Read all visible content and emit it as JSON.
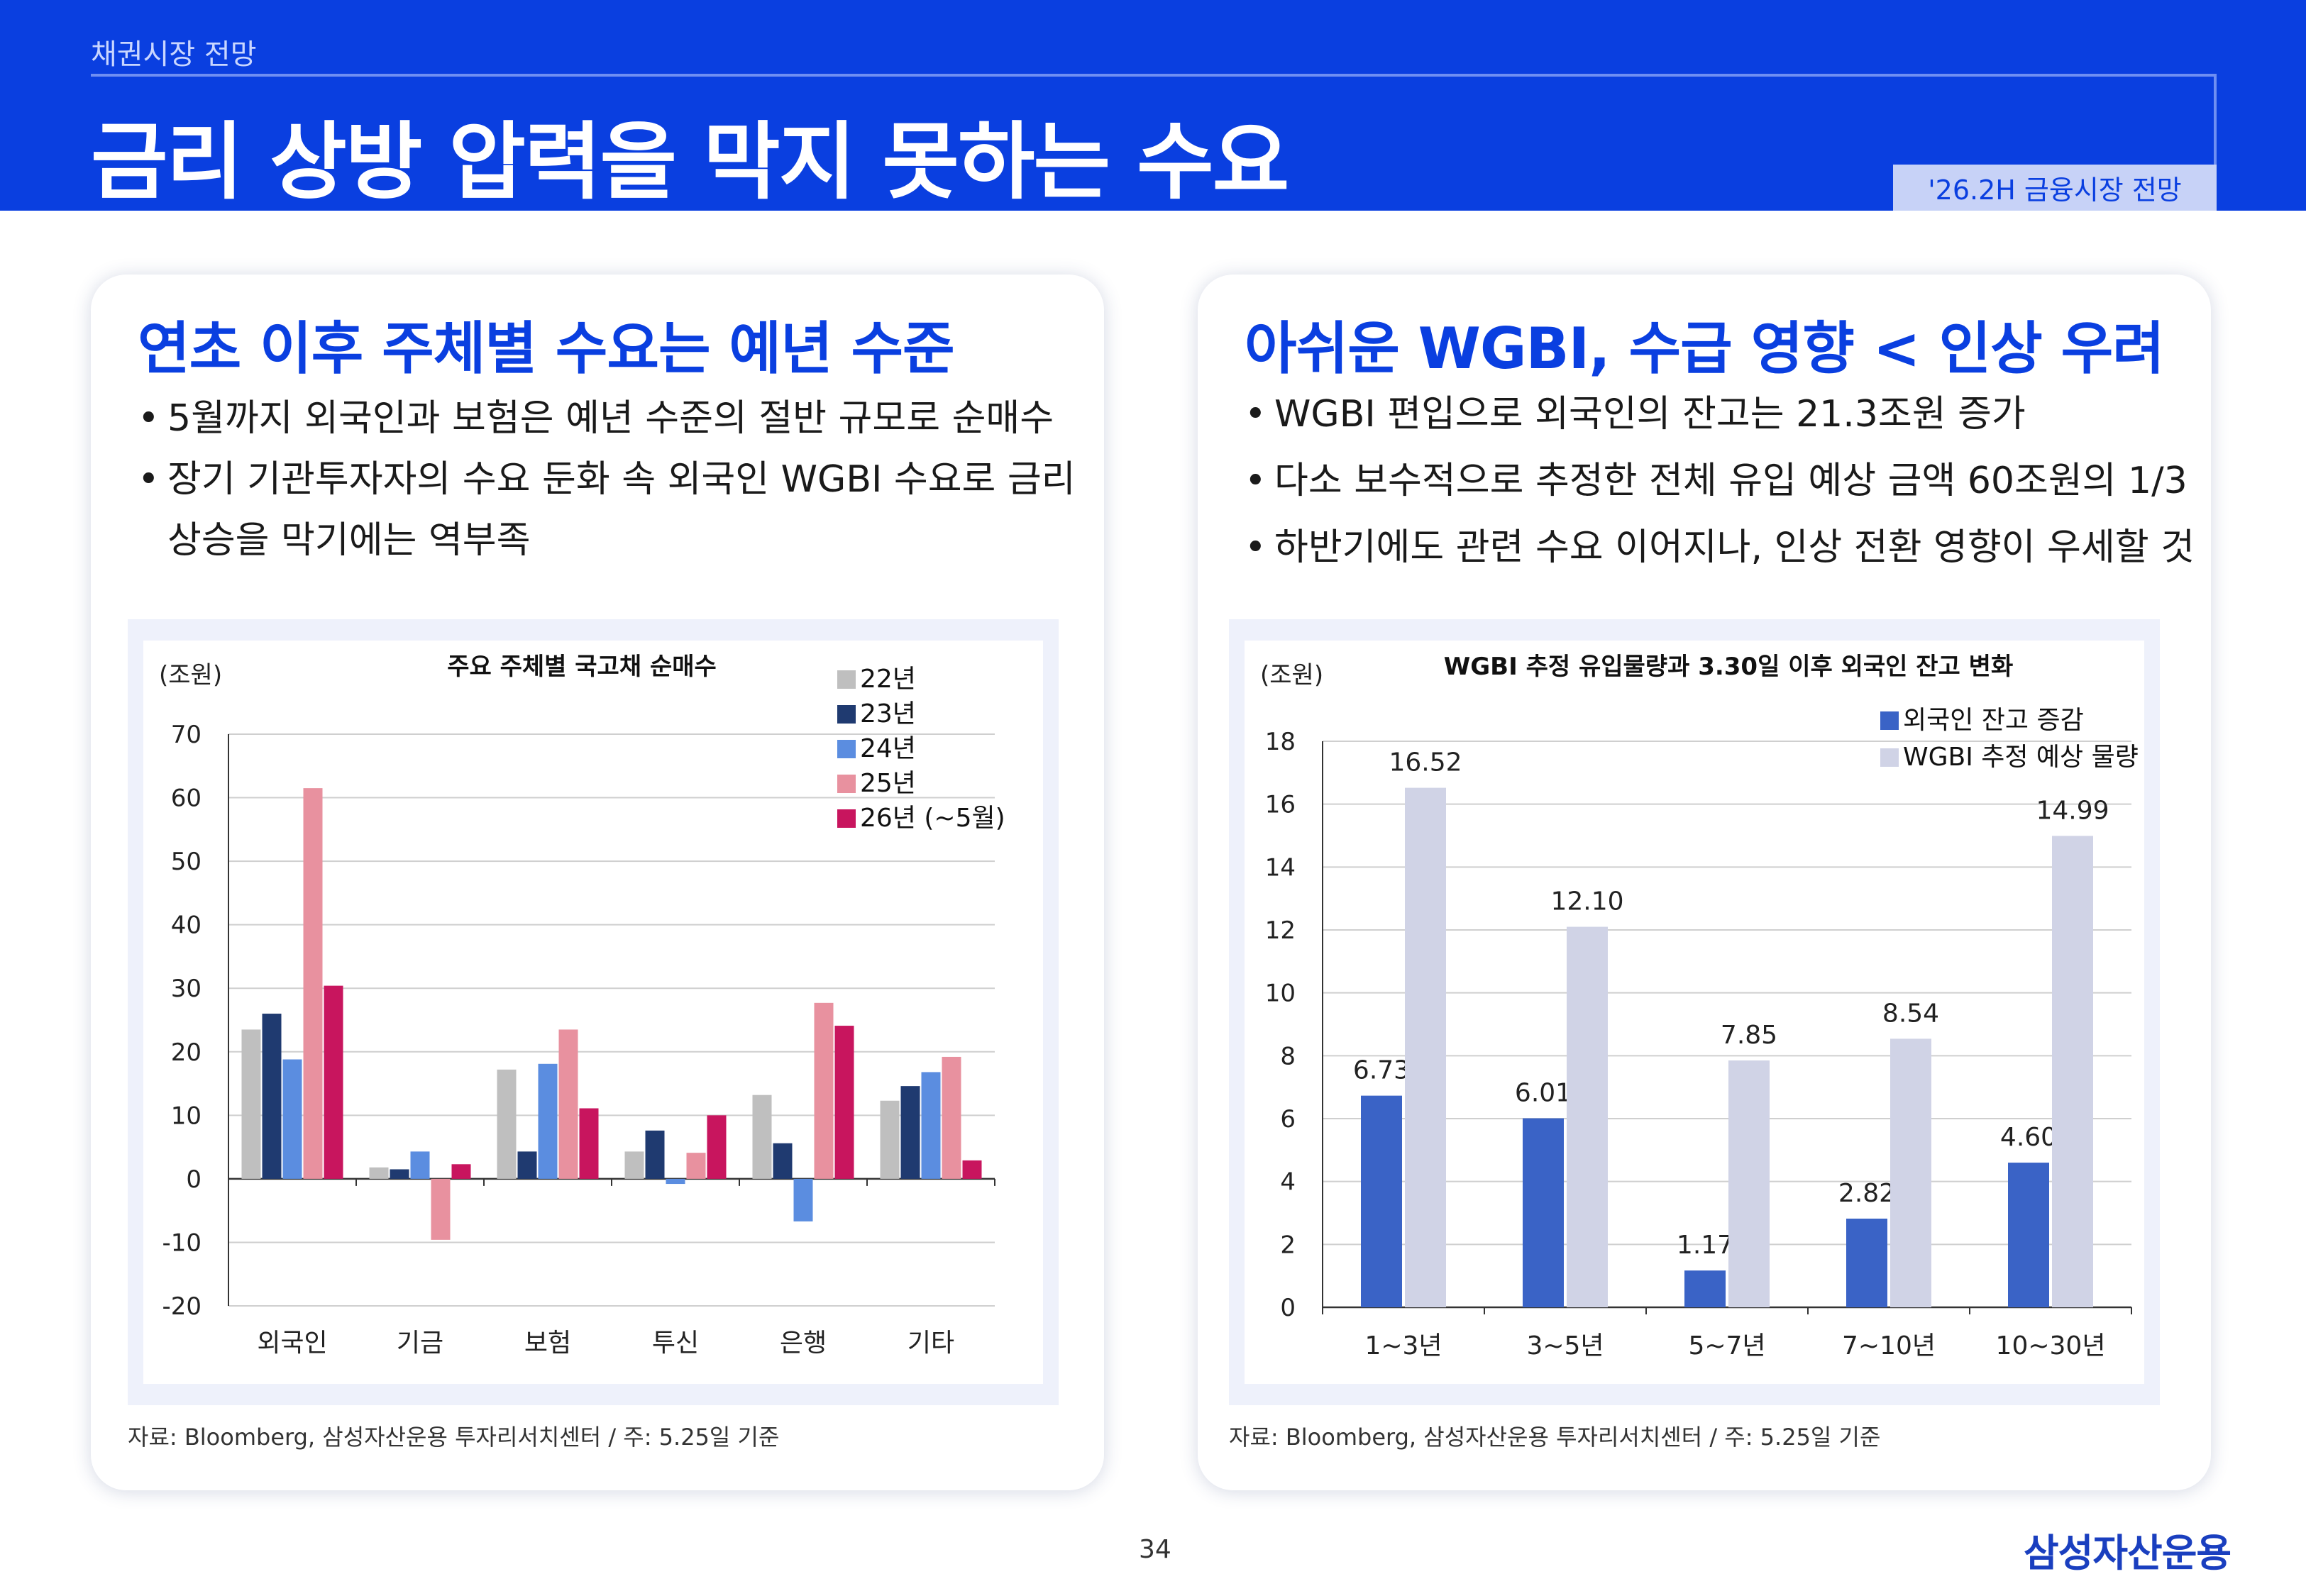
{
  "header": {
    "breadcrumb": "채권시장 전망",
    "title": "금리 상방 압력을 막지 못하는 수요",
    "badge": "'26.2H 금융시장 전망"
  },
  "left": {
    "title": "연초 이후 주체별 수요는 예년 수준",
    "bullets": [
      "5월까지 외국인과 보험은 예년 수준의 절반 규모로 순매수",
      "장기 기관투자자의 수요 둔화 속 외국인 WGBI 수요로 금리",
      "상승을 막기에는 역부족"
    ],
    "source": "자료: Bloomberg, 삼성자산운용 투자리서치센터 / 주: 5.25일 기준"
  },
  "right": {
    "title": "아쉬운 WGBI, 수급 영향 < 인상 우려",
    "bullets": [
      "WGBI 편입으로 외국인의 잔고는 21.3조원 증가",
      "다소 보수적으로 추정한 전체 유입 예상 금액 60조원의 1/3",
      "하반기에도 관련 수요 이어지나, 인상 전환 영향이 우세할 것"
    ],
    "source": "자료: Bloomberg, 삼성자산운용 투자리서치센터 / 주: 5.25일 기준"
  },
  "footer": {
    "page_number": "34",
    "logo": "삼성자산운용"
  },
  "chart_data": [
    {
      "type": "bar",
      "title": "주요 주체별 국고채 순매수",
      "ylabel": "(조원)",
      "ylim": [
        -20,
        70
      ],
      "yticks": [
        70,
        60,
        50,
        40,
        30,
        20,
        10,
        0,
        -10,
        -20
      ],
      "grid": true,
      "legend_position": "top-right",
      "categories": [
        "외국인",
        "기금",
        "보험",
        "투신",
        "은행",
        "기타"
      ],
      "series": [
        {
          "name": "22년",
          "color": "#bfbfbf",
          "values": [
            23.5,
            1.8,
            17.2,
            4.3,
            13.2,
            12.3
          ]
        },
        {
          "name": "23년",
          "color": "#1f3a70",
          "values": [
            26.0,
            1.5,
            4.3,
            7.6,
            5.6,
            14.6
          ]
        },
        {
          "name": "24년",
          "color": "#5b8de0",
          "values": [
            18.8,
            4.3,
            18.1,
            -0.8,
            -6.7,
            16.8
          ]
        },
        {
          "name": "25년",
          "color": "#e8919f",
          "values": [
            61.5,
            -9.6,
            23.5,
            4.1,
            27.7,
            19.2
          ]
        },
        {
          "name": "26년 (~5월)",
          "color": "#c8155e",
          "values": [
            30.4,
            2.3,
            11.1,
            10.0,
            24.1,
            2.9
          ]
        }
      ]
    },
    {
      "type": "bar",
      "title": "WGBI 추정 유입물량과 3.30일 이후 외국인 잔고 변화",
      "ylabel": "(조원)",
      "ylim": [
        0,
        18
      ],
      "yticks": [
        18,
        16,
        14,
        12,
        10,
        8,
        6,
        4,
        2,
        0
      ],
      "grid": true,
      "legend_position": "top-right",
      "categories": [
        "1~3년",
        "3~5년",
        "5~7년",
        "7~10년",
        "10~30년"
      ],
      "series": [
        {
          "name": "외국인 잔고 증감",
          "color": "#3a63c6",
          "values": [
            6.73,
            6.01,
            1.17,
            2.82,
            4.6
          ],
          "labels": [
            "6.73",
            "6.01",
            "1.17",
            "2.82",
            "4.60"
          ]
        },
        {
          "name": "WGBI 추정 예상 물량",
          "color": "#d0d3e6",
          "values": [
            16.52,
            12.1,
            7.85,
            8.54,
            14.99
          ],
          "labels": [
            "16.52",
            "12.10",
            "7.85",
            "8.54",
            "14.99"
          ]
        }
      ]
    }
  ]
}
